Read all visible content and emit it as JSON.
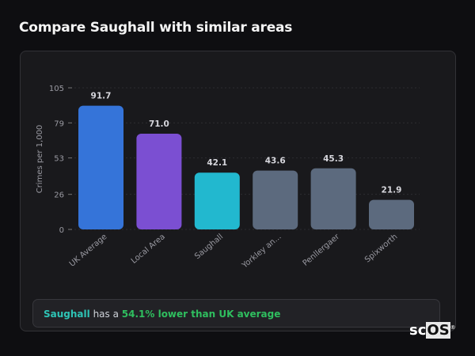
{
  "title": "Compare Saughall with similar areas",
  "chart_data": {
    "type": "bar",
    "ylabel": "Crimes per 1,000",
    "xlabel": "",
    "ylim": [
      0,
      105
    ],
    "yticks": [
      "0",
      "26",
      "53",
      "79",
      "105"
    ],
    "ytick_values": [
      0,
      26,
      53,
      79,
      105
    ],
    "grid": true,
    "categories": [
      "UK Average",
      "Local Area",
      "Saughall",
      "Yorkley an...",
      "Penllergaer",
      "Spixworth"
    ],
    "values": [
      91.7,
      71.0,
      42.1,
      43.6,
      45.3,
      21.9
    ],
    "labels": [
      "91.7",
      "71.0",
      "42.1",
      "43.6",
      "45.3",
      "21.9"
    ],
    "colors": [
      "#3574d9",
      "#7b4fd2",
      "#22b8cf",
      "#5c6a7e",
      "#5c6a7e",
      "#5c6a7e"
    ]
  },
  "summary": {
    "area": "Saughall",
    "middle": " has a ",
    "highlight": "54.1% lower than UK average",
    "area_color": "#2ec4b6",
    "highlight_color": "#2fbf5f"
  },
  "logo": {
    "text_a": "sc",
    "text_b": "OS",
    "mark": "®"
  }
}
